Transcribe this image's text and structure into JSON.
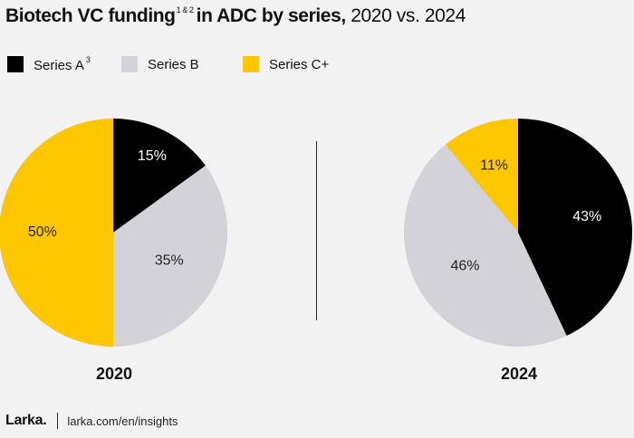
{
  "title": {
    "bold_part": "Biotech VC funding",
    "footnote_ref": "1 & 2",
    "bold_part2": "in ADC by series,",
    "light_part": "2020 vs. 2024"
  },
  "legend": [
    {
      "label": "Series A",
      "sup": "3",
      "color": "#000000"
    },
    {
      "label": "Series B",
      "sup": "",
      "color": "#d4d2d9"
    },
    {
      "label": "Series C+",
      "sup": "",
      "color": "#ffc700"
    }
  ],
  "footer": {
    "logo": "Larka.",
    "url": "larka.com/en/insights"
  },
  "chart_data": [
    {
      "type": "pie",
      "title": "2020",
      "categories": [
        "Series A",
        "Series B",
        "Series C+"
      ],
      "values": [
        15,
        35,
        50
      ],
      "labels": [
        "15%",
        "35%",
        "50%"
      ],
      "colors": [
        "#000000",
        "#d4d2d9",
        "#ffc700"
      ],
      "legend_position": "top-left"
    },
    {
      "type": "pie",
      "title": "2024",
      "categories": [
        "Series A",
        "Series B",
        "Series C+"
      ],
      "values": [
        43,
        46,
        11
      ],
      "labels": [
        "43%",
        "46%",
        "11%"
      ],
      "colors": [
        "#000000",
        "#d4d2d9",
        "#ffc700"
      ],
      "legend_position": "top-left"
    }
  ]
}
